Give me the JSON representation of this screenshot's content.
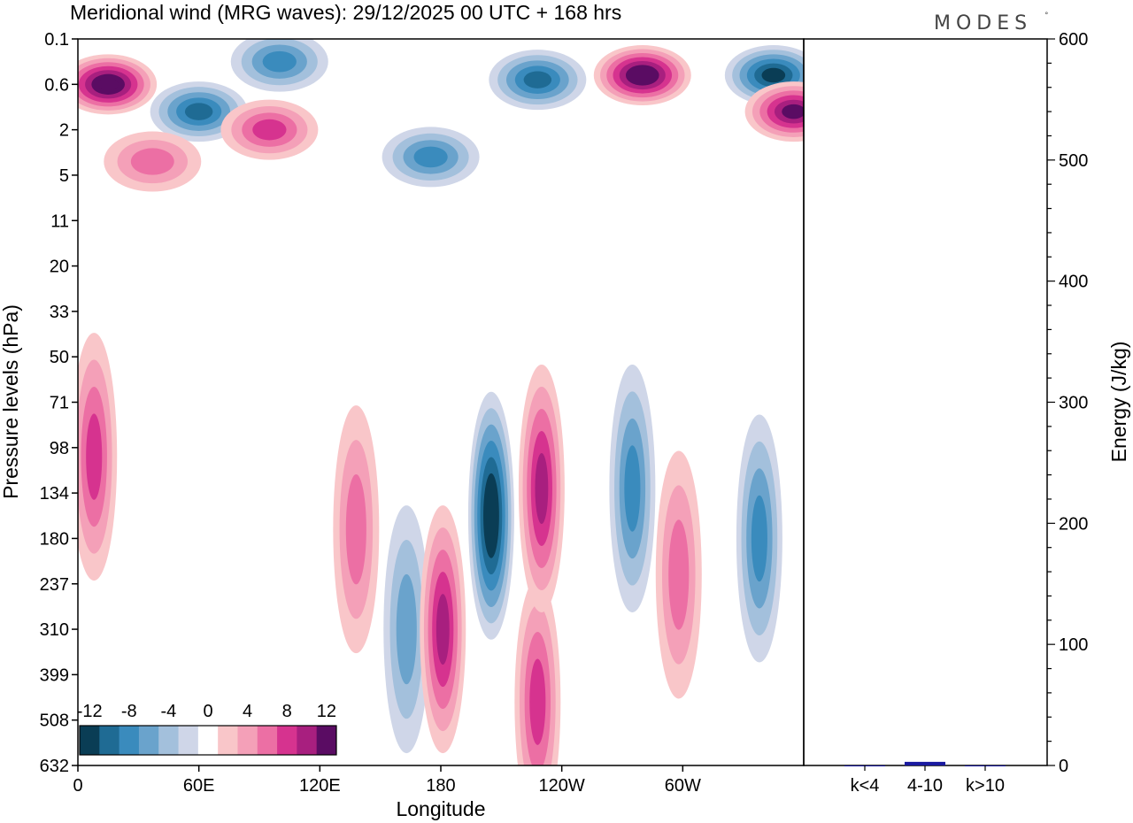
{
  "brand": "MODES",
  "brand_mark": "°",
  "chart_data": [
    {
      "type": "heatmap",
      "title": "Meridional wind (MRG waves):  29/12/2025  00 UTC  + 168 hrs",
      "xlabel": "Longitude",
      "ylabel": "Pressure levels (hPa)",
      "x_ticks": [
        "0",
        "60E",
        "120E",
        "180",
        "120W",
        "60W"
      ],
      "x_tick_values": [
        0,
        60,
        120,
        180,
        240,
        300
      ],
      "xlim": [
        0,
        360
      ],
      "y_ticks": [
        "0.1",
        "0.6",
        "2",
        "5",
        "11",
        "20",
        "33",
        "50",
        "71",
        "98",
        "134",
        "180",
        "237",
        "310",
        "399",
        "508",
        "632"
      ],
      "y_scale": "level-index (top 0.1 hPa, bottom 632 hPa)",
      "colorbar": {
        "labels": [
          "-12",
          "-8",
          "-4",
          "0",
          "4",
          "8",
          "12"
        ],
        "levels": [
          -14,
          -12,
          -10,
          -8,
          -6,
          -4,
          -2,
          2,
          4,
          6,
          8,
          10,
          12,
          14
        ],
        "colors": [
          "#0a3d55",
          "#1f6b94",
          "#3a8bbd",
          "#6aa3cc",
          "#a3c0dc",
          "#cfd6e8",
          "#ffffff",
          "#f9c6c9",
          "#f4a0b8",
          "#ec6fa4",
          "#d6338f",
          "#a81f7f",
          "#5a0c63"
        ]
      },
      "features": [
        {
          "lon": 15,
          "level": 1,
          "value": 14
        },
        {
          "lon": 60,
          "level": 1.6,
          "value": -10
        },
        {
          "lon": 100,
          "level": 0.5,
          "value": -8
        },
        {
          "lon": 95,
          "level": 2,
          "value": 8
        },
        {
          "lon": 175,
          "level": 2.6,
          "value": -8
        },
        {
          "lon": 228,
          "level": 0.9,
          "value": -10
        },
        {
          "lon": 280,
          "level": 0.8,
          "value": 14
        },
        {
          "lon": 345,
          "level": 0.8,
          "value": -12
        },
        {
          "lon": 355,
          "level": 1.6,
          "value": 12
        },
        {
          "lon": 37,
          "level": 2.7,
          "value": 6
        },
        {
          "lon": 8,
          "level": 9.2,
          "value": 8
        },
        {
          "lon": 138,
          "level": 10.8,
          "value": 6
        },
        {
          "lon": 163,
          "level": 13,
          "value": -6
        },
        {
          "lon": 181,
          "level": 13,
          "value": 10
        },
        {
          "lon": 205,
          "level": 10.5,
          "value": -14
        },
        {
          "lon": 228,
          "level": 14.6,
          "value": 8
        },
        {
          "lon": 230,
          "level": 9.9,
          "value": 10
        },
        {
          "lon": 275,
          "level": 9.9,
          "value": -8
        },
        {
          "lon": 298,
          "level": 11.8,
          "value": 6
        },
        {
          "lon": 338,
          "level": 11,
          "value": -8
        }
      ]
    },
    {
      "type": "bar",
      "ylabel": "Energy (J/kg)",
      "ylim": [
        0,
        600
      ],
      "y_ticks": [
        "0",
        "100",
        "200",
        "300",
        "400",
        "500",
        "600"
      ],
      "categories": [
        "k<4",
        "4-10",
        "k>10"
      ],
      "values": [
        0,
        3,
        0
      ],
      "bar_color": "#1a1aa0"
    }
  ]
}
